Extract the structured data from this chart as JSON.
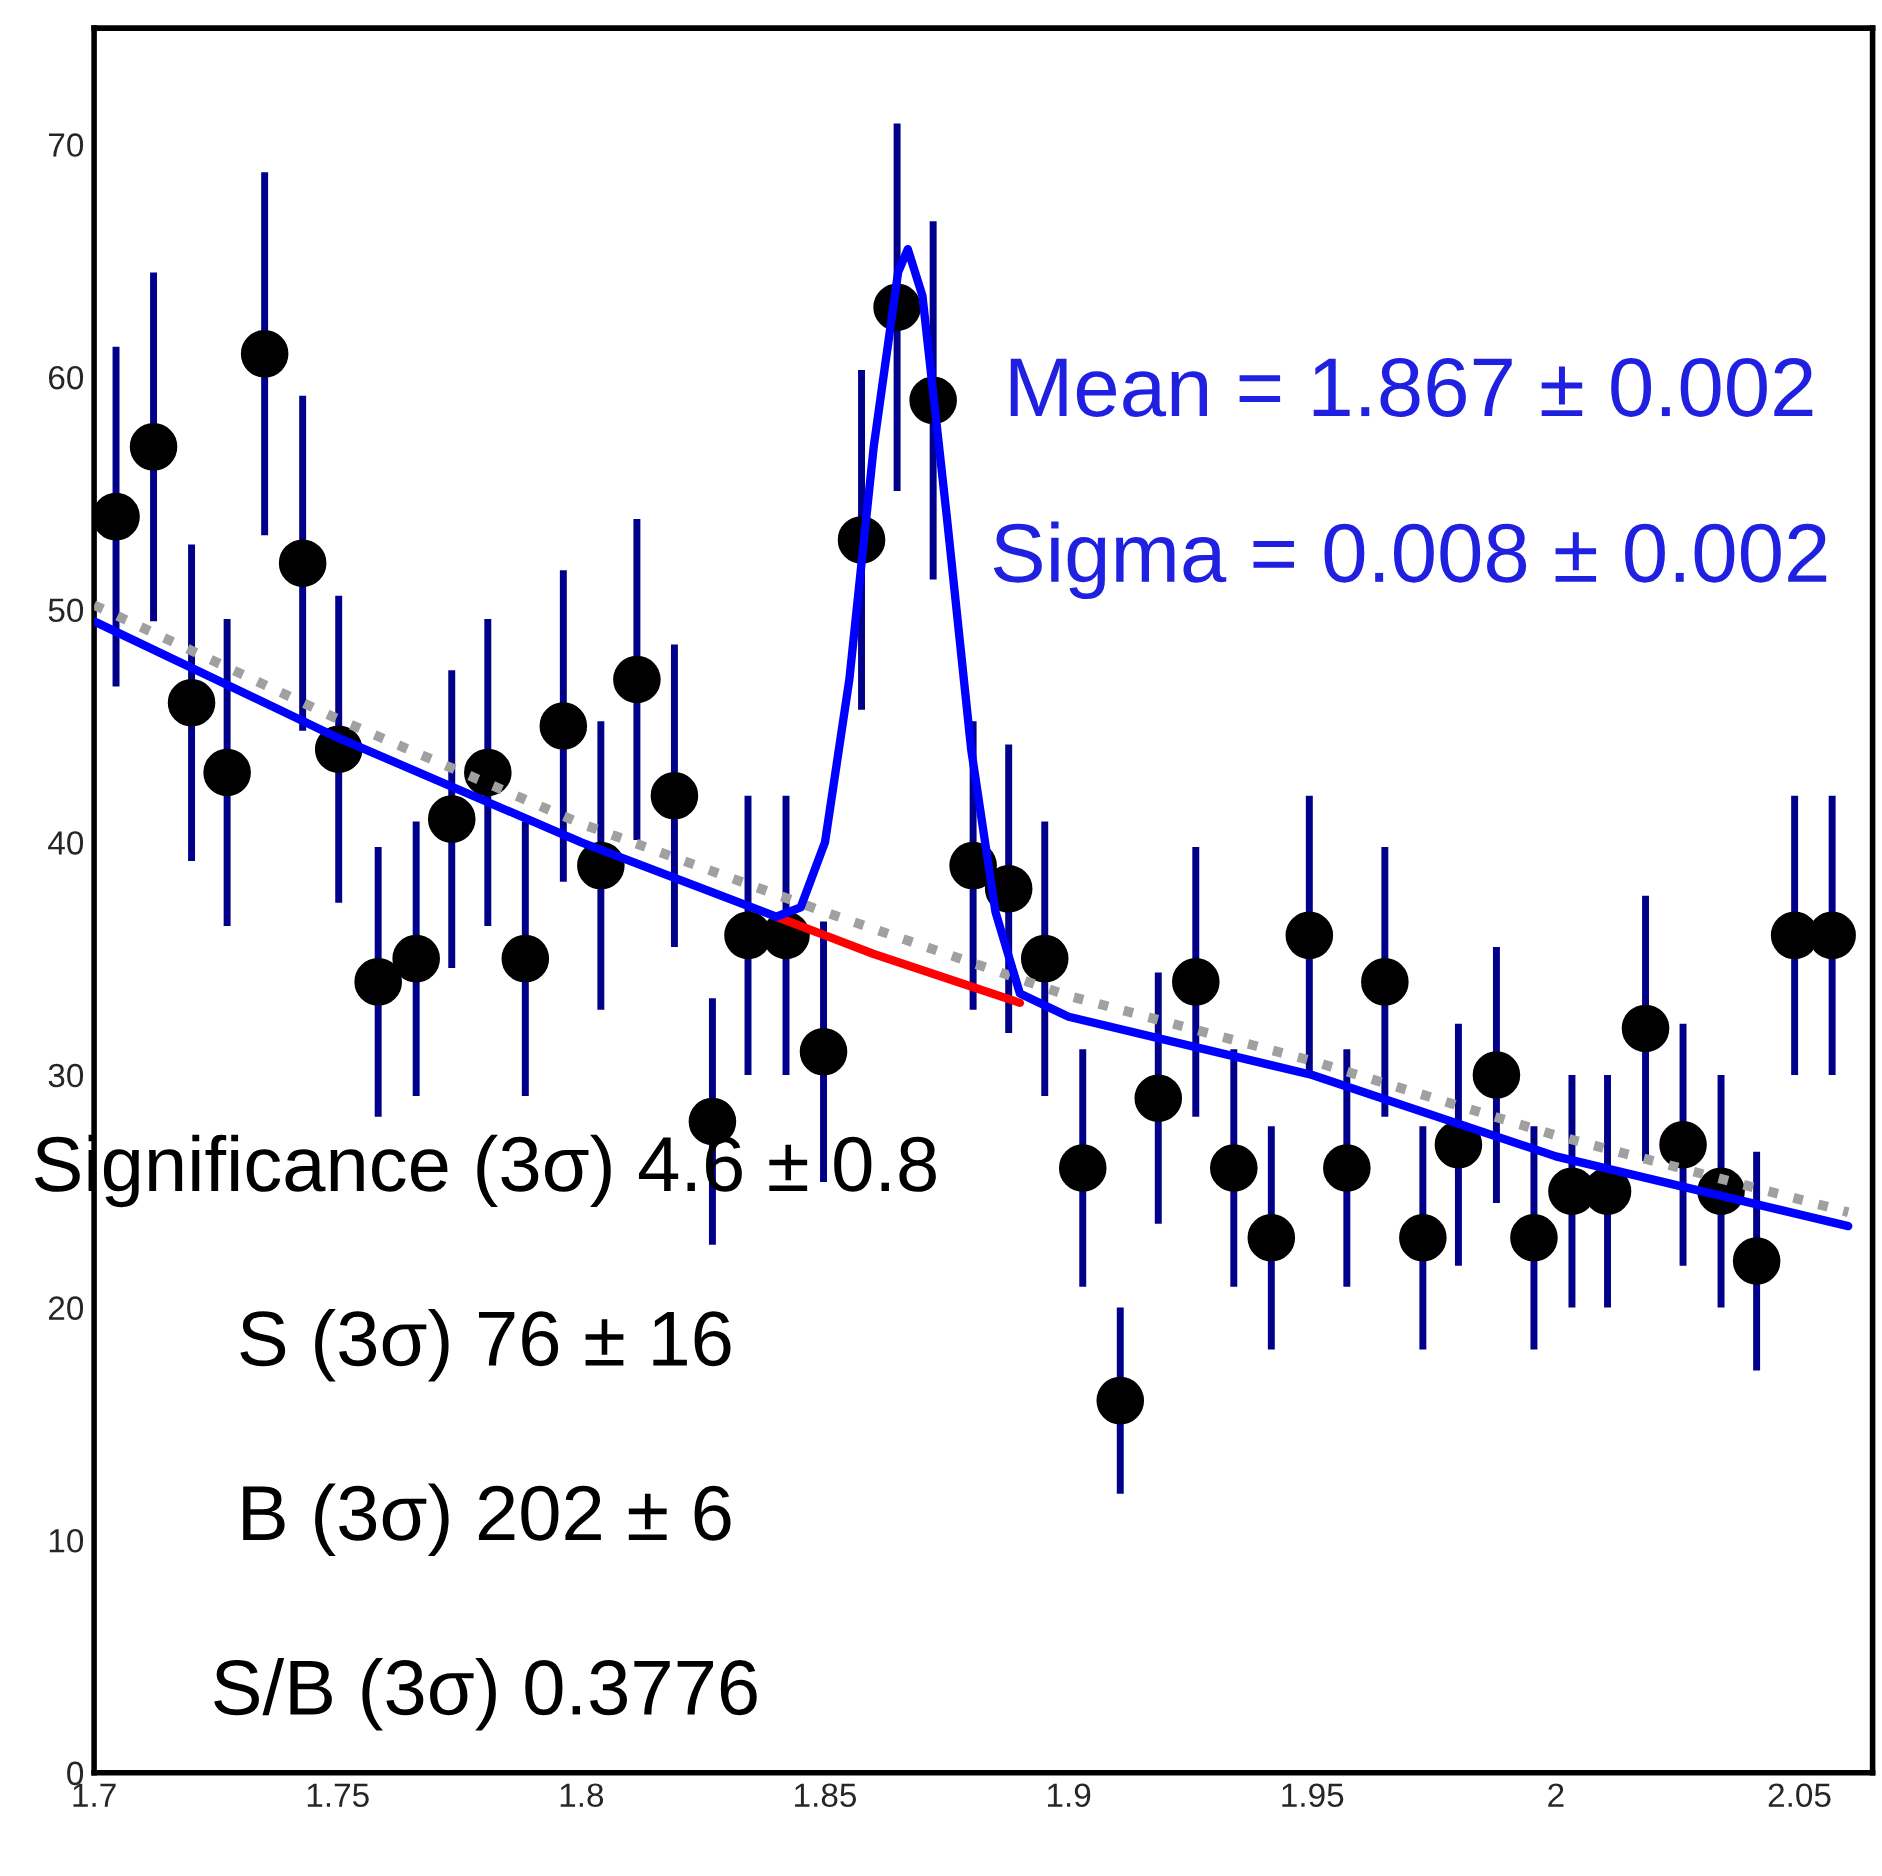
{
  "chart_data": {
    "type": "scatter",
    "xlim": [
      1.7,
      2.065
    ],
    "ylim": [
      0,
      75
    ],
    "xticks": [
      {
        "value": 1.7,
        "label": "1.7"
      },
      1.75,
      1.8,
      1.85,
      1.9,
      1.95,
      {
        "value": 2.0,
        "label": "2"
      },
      2.05
    ],
    "yticks": [
      0,
      10,
      20,
      30,
      40,
      50,
      60,
      70
    ],
    "grid": false,
    "legend": false,
    "series": [
      {
        "marker": "circle",
        "color": "#000000",
        "x": [
          1.7045,
          1.7122,
          1.72,
          1.7273,
          1.735,
          1.7428,
          1.7502,
          1.7583,
          1.7661,
          1.7734,
          1.7808,
          1.7885,
          1.7963,
          1.804,
          1.8114,
          1.8191,
          1.8269,
          1.8342,
          1.842,
          1.8497,
          1.8575,
          1.8648,
          1.8722,
          1.8804,
          1.8877,
          1.8951,
          1.9029,
          1.9106,
          1.9184,
          1.9261,
          1.9339,
          1.9416,
          1.9494,
          1.9571,
          1.9649,
          1.9727,
          1.98,
          1.9878,
          1.9955,
          2.0033,
          2.0106,
          2.0184,
          2.0261,
          2.0339,
          2.0412,
          2.049,
          2.0567
        ],
        "values": [
          54,
          57,
          46,
          43,
          61,
          52,
          44,
          34,
          35,
          41,
          43,
          35,
          45,
          39,
          47,
          42,
          28,
          36,
          36,
          31,
          53,
          63,
          59,
          39,
          38,
          35,
          26,
          16,
          29,
          34,
          26,
          23,
          36,
          26,
          34,
          23,
          27,
          30,
          23,
          25,
          25,
          32,
          27,
          25,
          22,
          36,
          36
        ],
        "errors": [
          7.3,
          7.5,
          6.8,
          6.6,
          7.8,
          7.2,
          6.6,
          5.8,
          5.9,
          6.4,
          6.6,
          5.9,
          6.7,
          6.2,
          6.9,
          6.5,
          5.3,
          6,
          6,
          5.6,
          7.3,
          7.9,
          7.7,
          6.2,
          6.2,
          5.9,
          5.1,
          4,
          5.4,
          5.8,
          5.1,
          4.8,
          6,
          5.1,
          5.8,
          4.8,
          5.2,
          5.5,
          4.8,
          5,
          5,
          5.7,
          5.2,
          5,
          4.7,
          6,
          6
        ]
      },
      {
        "type": "line",
        "line_style": "dotted",
        "color": "#a0a0a0",
        "x": [
          1.7,
          1.75,
          1.8,
          1.85,
          1.9,
          1.95,
          2.0,
          2.06
        ],
        "values": [
          50.2,
          45.3,
          40.8,
          37,
          33.4,
          30.6,
          27.4,
          24.1
        ]
      },
      {
        "type": "line",
        "line_style": "solid",
        "color": "#ff0000",
        "x": [
          1.84,
          1.85,
          1.86,
          1.87,
          1.88,
          1.89
        ],
        "values": [
          36.8,
          36,
          35.2,
          34.5,
          33.8,
          33.1
        ]
      },
      {
        "type": "line",
        "line_style": "solid",
        "color": "#0000ff",
        "x": [
          1.7,
          1.75,
          1.8,
          1.84,
          1.845,
          1.85,
          1.855,
          1.86,
          1.865,
          1.867,
          1.87,
          1.875,
          1.88,
          1.885,
          1.89,
          1.9,
          1.95,
          2.0,
          2.06
        ],
        "values": [
          49.5,
          44.5,
          40,
          36.8,
          37.2,
          40,
          47,
          57,
          64.5,
          65.5,
          63.5,
          54,
          44,
          37,
          33.5,
          32.5,
          30,
          26.5,
          23.5
        ]
      }
    ],
    "annotations": [
      "Mean = 1.867 ± 0.002",
      "Sigma = 0.008 ± 0.002",
      "Significance (3σ) 4.6 ± 0.8",
      "S (3σ) 76 ± 16",
      "B (3σ) 202 ± 6",
      "S/B (3σ) 0.3776"
    ]
  }
}
